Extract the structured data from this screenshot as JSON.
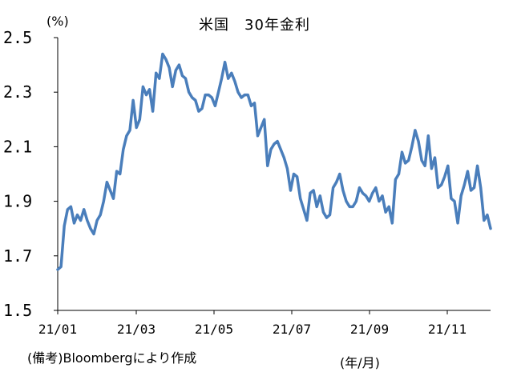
{
  "chart_data": {
    "type": "line",
    "title": "米国　30年金利",
    "ylabel": "(%)",
    "xlabel": "(年/月)",
    "source": "(備考)Bloombergにより作成",
    "ylim": [
      1.5,
      2.5
    ],
    "yticks": [
      "2.5",
      "2.3",
      "2.1",
      "1.9",
      "1.7",
      "1.5"
    ],
    "xticks": [
      "21/01",
      "21/03",
      "21/05",
      "21/07",
      "21/09",
      "21/11"
    ],
    "grid": false,
    "legend": "none",
    "line_color": "#4a7ebb",
    "series": [
      {
        "values": [
          1.65,
          1.66,
          1.81,
          1.87,
          1.88,
          1.82,
          1.85,
          1.83,
          1.87,
          1.83,
          1.8,
          1.78,
          1.83,
          1.85,
          1.9,
          1.97,
          1.94,
          1.91,
          2.01,
          2.0,
          2.09,
          2.14,
          2.16,
          2.27,
          2.17,
          2.2,
          2.32,
          2.29,
          2.31,
          2.23,
          2.37,
          2.35,
          2.44,
          2.42,
          2.39,
          2.32,
          2.38,
          2.4,
          2.36,
          2.35,
          2.3,
          2.28,
          2.27,
          2.23,
          2.24,
          2.29,
          2.29,
          2.28,
          2.25,
          2.3,
          2.35,
          2.41,
          2.35,
          2.37,
          2.34,
          2.3,
          2.28,
          2.29,
          2.29,
          2.25,
          2.26,
          2.14,
          2.17,
          2.2,
          2.03,
          2.09,
          2.11,
          2.12,
          2.09,
          2.06,
          2.02,
          1.94,
          2.0,
          1.99,
          1.91,
          1.87,
          1.83,
          1.93,
          1.94,
          1.88,
          1.92,
          1.86,
          1.84,
          1.85,
          1.95,
          1.97,
          2.0,
          1.94,
          1.9,
          1.88,
          1.88,
          1.9,
          1.95,
          1.93,
          1.92,
          1.9,
          1.93,
          1.95,
          1.9,
          1.92,
          1.86,
          1.88,
          1.82,
          1.98,
          2.0,
          2.08,
          2.04,
          2.05,
          2.1,
          2.16,
          2.12,
          2.05,
          2.03,
          2.14,
          2.02,
          2.06,
          1.95,
          1.96,
          1.99,
          2.03,
          1.91,
          1.9,
          1.82,
          1.92,
          1.96,
          2.01,
          1.94,
          1.95,
          2.03,
          1.95,
          1.83,
          1.85,
          1.8
        ]
      }
    ]
  }
}
